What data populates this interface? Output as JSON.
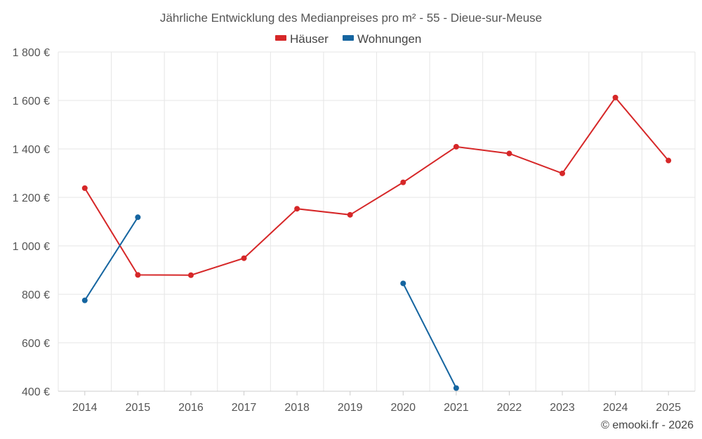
{
  "chart_data": {
    "type": "line",
    "title": "Jährliche Entwicklung des Medianpreises pro m² - 55 - Dieue-sur-Meuse",
    "categories": [
      "2014",
      "2015",
      "2016",
      "2017",
      "2018",
      "2019",
      "2020",
      "2021",
      "2022",
      "2023",
      "2024",
      "2025"
    ],
    "series": [
      {
        "name": "Häuser",
        "color": "#d62728",
        "values": [
          1238,
          880,
          879,
          949,
          1153,
          1128,
          1262,
          1409,
          1381,
          1299,
          1612,
          1352
        ]
      },
      {
        "name": "Wohnungen",
        "color": "#1565a0",
        "values": [
          775,
          1118,
          null,
          null,
          null,
          null,
          845,
          413,
          null,
          null,
          null,
          null
        ]
      }
    ],
    "yticks": [
      "400 €",
      "600 €",
      "800 €",
      "1 000 €",
      "1 200 €",
      "1 400 €",
      "1 600 €",
      "1 800 €"
    ],
    "ytick_values": [
      400,
      600,
      800,
      1000,
      1200,
      1400,
      1600,
      1800
    ],
    "ylim": [
      400,
      1800
    ],
    "legend_position": "top-center",
    "grid": true
  },
  "credit": "© emooki.fr - 2026"
}
